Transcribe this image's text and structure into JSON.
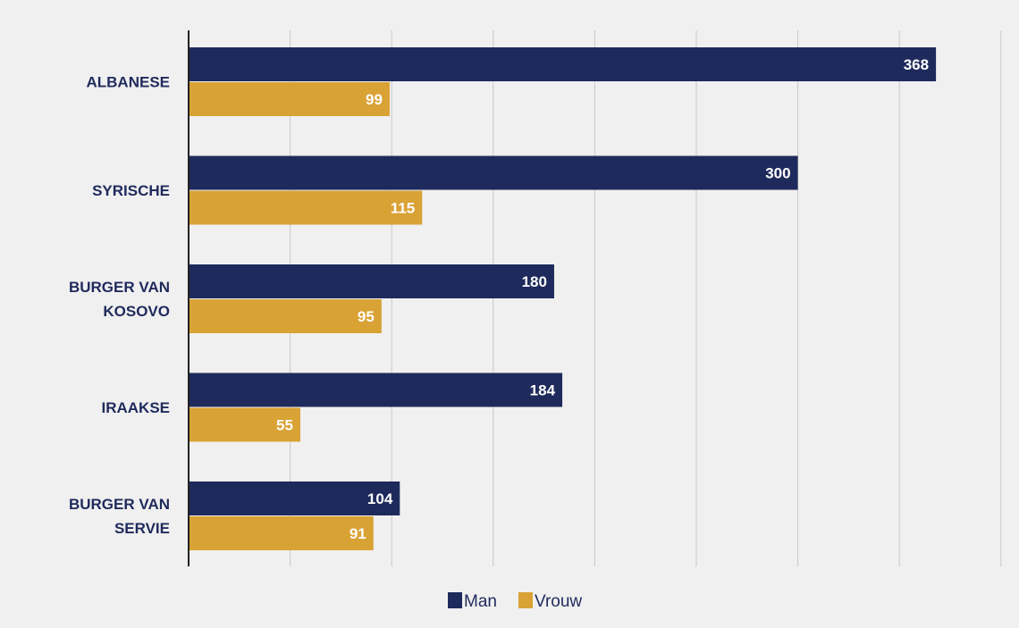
{
  "chart_data": {
    "type": "bar",
    "orientation": "horizontal",
    "categories": [
      [
        "ALBANESE"
      ],
      [
        "SYRISCHE"
      ],
      [
        "BURGER VAN",
        "KOSOVO"
      ],
      [
        "IRAAKSE"
      ],
      [
        "BURGER VAN",
        "SERVIE"
      ]
    ],
    "series": [
      {
        "name": "Man",
        "values": [
          368,
          300,
          180,
          184,
          104
        ],
        "color": "#1f2a5c"
      },
      {
        "name": "Vrouw",
        "values": [
          99,
          115,
          95,
          55,
          91
        ],
        "color": "#d9a235"
      }
    ],
    "xlim": [
      0,
      400
    ],
    "grid": "vertical",
    "legend_position": "bottom",
    "data_labels": true
  }
}
